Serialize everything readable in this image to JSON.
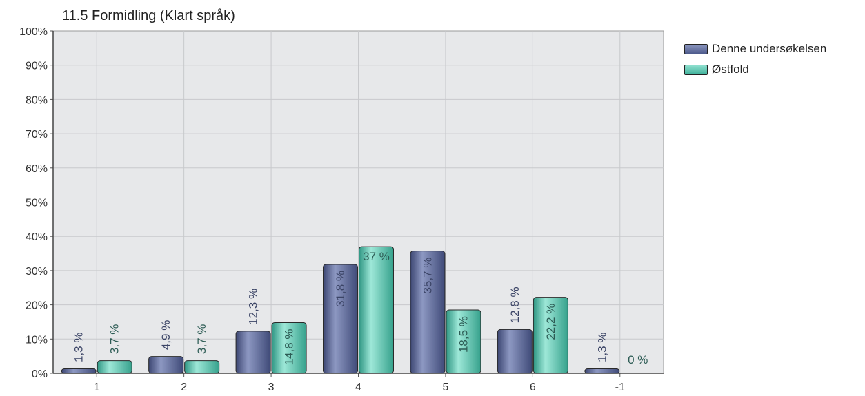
{
  "chart_data": {
    "type": "bar",
    "title": "11.5 Formidling (Klart språk)",
    "categories": [
      "1",
      "2",
      "3",
      "4",
      "5",
      "6",
      "-1"
    ],
    "series": [
      {
        "name": "Denne undersøkelsen",
        "values": [
          1.3,
          4.9,
          12.3,
          31.8,
          35.7,
          12.8,
          1.3
        ],
        "labels": [
          "1,3 %",
          "4,9 %",
          "12,3 %",
          "31,8 %",
          "35,7 %",
          "12,8 %",
          "1,3 %"
        ],
        "color": "#5b6796"
      },
      {
        "name": "Østfold",
        "values": [
          3.7,
          3.7,
          14.8,
          37,
          18.5,
          22.2,
          0
        ],
        "labels": [
          "3,7 %",
          "3,7 %",
          "14,8 %",
          "37 %",
          "18,5 %",
          "22,2 %",
          "0 %"
        ],
        "color": "#4fc2aa"
      }
    ],
    "ylim": [
      0,
      100
    ],
    "yticks": [
      "0%",
      "10%",
      "20%",
      "30%",
      "40%",
      "50%",
      "60%",
      "70%",
      "80%",
      "90%",
      "100%"
    ],
    "grid": true,
    "legend_position": "right"
  }
}
